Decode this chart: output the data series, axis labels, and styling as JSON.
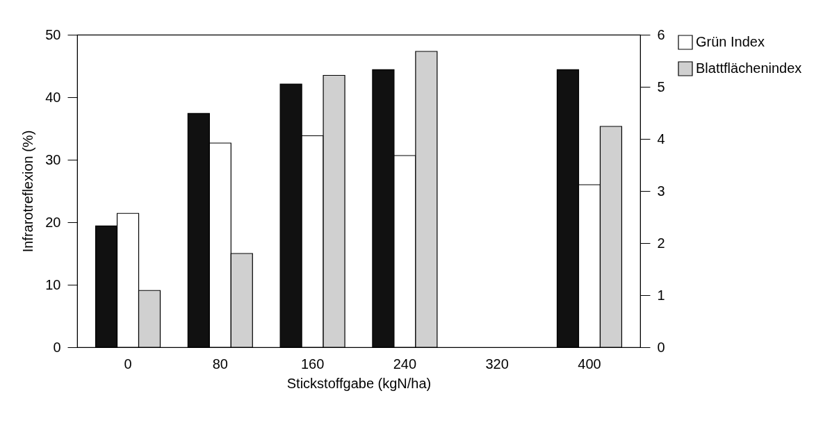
{
  "chart_data": {
    "type": "bar",
    "xlabel": "Stickstoffgabe (kgN/ha)",
    "ylabel": "Infrarotreflexion (%)",
    "categories": [
      "0",
      "80",
      "160",
      "240",
      "320",
      "400"
    ],
    "series": [
      {
        "color": "#111111",
        "values": [
          19.4,
          37.4,
          42.1,
          44.4,
          null,
          44.4
        ]
      },
      {
        "name": "Grün Index",
        "color": "#ffffff",
        "axis": "y2",
        "values": [
          2.57,
          3.92,
          4.06,
          3.68,
          null,
          3.12
        ]
      },
      {
        "name": "Blattflächenindex",
        "color": "#d0d0d0",
        "axis": "y2",
        "values": [
          1.09,
          1.8,
          5.22,
          5.68,
          null,
          4.24
        ]
      }
    ],
    "ylim": [
      0,
      50
    ],
    "yticks": [
      0,
      10,
      20,
      30,
      40,
      50
    ],
    "y2lim": [
      0,
      6
    ],
    "y2ticks": [
      0,
      1,
      2,
      3,
      4,
      5,
      6
    ],
    "legend": "right",
    "grid": false
  }
}
